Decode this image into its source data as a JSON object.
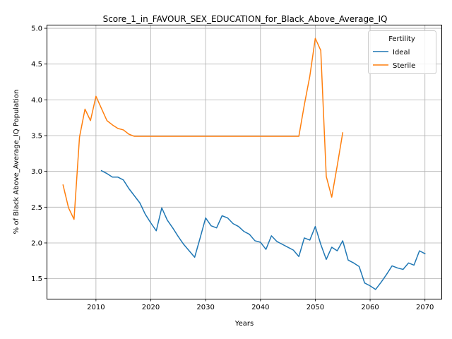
{
  "chart_data": {
    "type": "line",
    "title": "Score_1_in_FAVOUR_SEX_EDUCATION_for_Black_Above_Average_IQ",
    "xlabel": "Years",
    "ylabel": "% of Black Above_Average_IQ Population",
    "xlim": [
      2001,
      2073
    ],
    "ylim": [
      1.22,
      5.05
    ],
    "xticks": [
      2010,
      2020,
      2030,
      2040,
      2050,
      2060,
      2070
    ],
    "yticks": [
      1.5,
      2.0,
      2.5,
      3.0,
      3.5,
      4.0,
      4.5,
      5.0
    ],
    "xtick_labels": [
      "2010",
      "2020",
      "2030",
      "2040",
      "2050",
      "2060",
      "2070"
    ],
    "ytick_labels": [
      "1.5",
      "2.0",
      "2.5",
      "3.0",
      "3.5",
      "4.0",
      "4.5",
      "5.0"
    ],
    "grid": true,
    "legend": {
      "title": "Fertility",
      "placement": "top-right"
    },
    "series": [
      {
        "name": "Ideal",
        "color": "#1f77b4",
        "x": [
          2011,
          2012,
          2013,
          2014,
          2015,
          2016,
          2017,
          2018,
          2019,
          2020,
          2021,
          2022,
          2023,
          2024,
          2025,
          2026,
          2027,
          2028,
          2029,
          2030,
          2031,
          2032,
          2033,
          2034,
          2035,
          2036,
          2037,
          2038,
          2039,
          2040,
          2041,
          2042,
          2043,
          2044,
          2045,
          2046,
          2047,
          2048,
          2049,
          2050,
          2051,
          2052,
          2053,
          2054,
          2055,
          2056,
          2057,
          2058,
          2059,
          2060,
          2061,
          2062,
          2063,
          2064,
          2065,
          2066,
          2067,
          2068,
          2069,
          2070
        ],
        "y": [
          3.01,
          2.97,
          2.92,
          2.92,
          2.88,
          2.76,
          2.66,
          2.56,
          2.4,
          2.28,
          2.17,
          2.49,
          2.32,
          2.21,
          2.09,
          1.98,
          1.89,
          1.8,
          2.07,
          2.35,
          2.24,
          2.21,
          2.38,
          2.35,
          2.27,
          2.23,
          2.16,
          2.12,
          2.03,
          2.01,
          1.91,
          2.1,
          2.02,
          1.98,
          1.94,
          1.9,
          1.81,
          2.07,
          2.04,
          2.23,
          1.98,
          1.77,
          1.94,
          1.89,
          2.03,
          1.76,
          1.72,
          1.67,
          1.44,
          1.4,
          1.35,
          1.45,
          1.56,
          1.68,
          1.65,
          1.63,
          1.72,
          1.69,
          1.89,
          1.85
        ]
      },
      {
        "name": "Sterile",
        "color": "#ff7f0e",
        "x": [
          2004,
          2005,
          2006,
          2007,
          2008,
          2009,
          2010,
          2011,
          2012,
          2013,
          2014,
          2015,
          2016,
          2017,
          2018,
          2019,
          2020,
          2021,
          2022,
          2023,
          2024,
          2025,
          2026,
          2027,
          2028,
          2029,
          2030,
          2031,
          2032,
          2033,
          2034,
          2035,
          2036,
          2037,
          2038,
          2039,
          2040,
          2041,
          2042,
          2043,
          2044,
          2045,
          2046,
          2047,
          2048,
          2049,
          2050,
          2051,
          2052,
          2053,
          2054,
          2055
        ],
        "y": [
          2.81,
          2.49,
          2.33,
          3.48,
          3.87,
          3.71,
          4.05,
          3.88,
          3.71,
          3.65,
          3.6,
          3.58,
          3.52,
          3.49,
          3.49,
          3.49,
          3.49,
          3.49,
          3.49,
          3.49,
          3.49,
          3.49,
          3.49,
          3.49,
          3.49,
          3.49,
          3.49,
          3.49,
          3.49,
          3.49,
          3.49,
          3.49,
          3.49,
          3.49,
          3.49,
          3.49,
          3.49,
          3.49,
          3.49,
          3.49,
          3.49,
          3.49,
          3.49,
          3.49,
          3.93,
          4.33,
          4.86,
          4.69,
          2.93,
          2.64,
          3.08,
          3.54
        ]
      }
    ]
  }
}
